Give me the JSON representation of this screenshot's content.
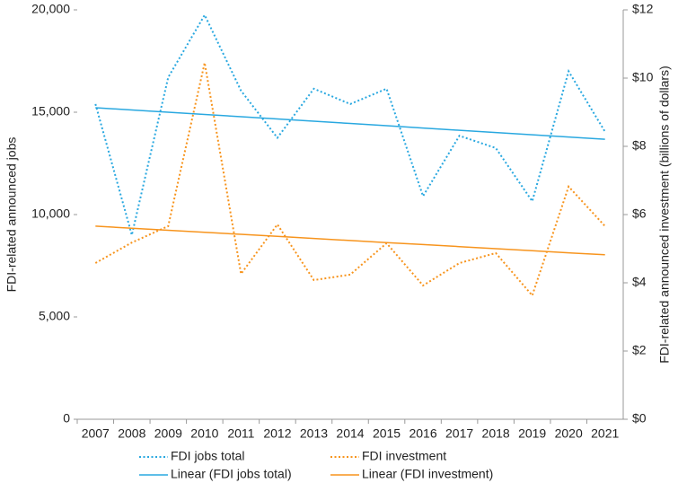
{
  "chart_data": {
    "type": "line",
    "y_label": "FDI-related announced jobs",
    "y2_label": "FDI-related announced investment (billions of dollars)",
    "categories": [
      "2007",
      "2008",
      "2009",
      "2010",
      "2011",
      "2012",
      "2013",
      "2014",
      "2015",
      "2016",
      "2017",
      "2018",
      "2019",
      "2020",
      "2021"
    ],
    "ylim": [
      0,
      20000
    ],
    "yticks": [
      0,
      {
        "value": 5000,
        "label": "5,000"
      },
      {
        "value": 10000,
        "label": "10,000"
      },
      {
        "value": 15000,
        "label": "15,000"
      },
      {
        "value": 20000,
        "label": "20,000"
      }
    ],
    "y2lim": [
      0,
      12
    ],
    "y2ticks": [
      {
        "value": 0,
        "label": "$0"
      },
      {
        "value": 2,
        "label": "$2"
      },
      {
        "value": 4,
        "label": "$4"
      },
      {
        "value": 6,
        "label": "$6"
      },
      {
        "value": 8,
        "label": "$8"
      },
      {
        "value": 10,
        "label": "$10"
      },
      {
        "value": 12,
        "label": "$12"
      }
    ],
    "series": [
      {
        "name": "FDI jobs total",
        "color": "#29a8e0",
        "style": "dotted",
        "values": [
          15400,
          9000,
          16700,
          19750,
          16050,
          13750,
          16150,
          15400,
          16150,
          10900,
          13850,
          13250,
          10650,
          17000,
          14050
        ]
      },
      {
        "name": "FDI investment",
        "color": "#f7941d",
        "style": "dotted",
        "axis": "y2",
        "values": [
          4.58,
          5.18,
          5.66,
          10.45,
          4.26,
          5.71,
          4.08,
          4.24,
          5.16,
          3.92,
          4.58,
          4.87,
          3.63,
          6.82,
          5.66
        ]
      },
      {
        "name": "Linear (FDI jobs total)",
        "color": "#29a8e0",
        "style": "solid",
        "values": [
          15220,
          15110,
          15000,
          14890,
          14780,
          14670,
          14560,
          14450,
          14340,
          14230,
          14120,
          14010,
          13900,
          13790,
          13680
        ]
      },
      {
        "name": "Linear (FDI investment)",
        "color": "#f7941d",
        "style": "solid",
        "axis": "y2",
        "values": [
          5.66,
          5.6,
          5.54,
          5.48,
          5.42,
          5.36,
          5.3,
          5.24,
          5.18,
          5.12,
          5.06,
          5.0,
          4.94,
          4.88,
          4.82
        ]
      }
    ]
  }
}
